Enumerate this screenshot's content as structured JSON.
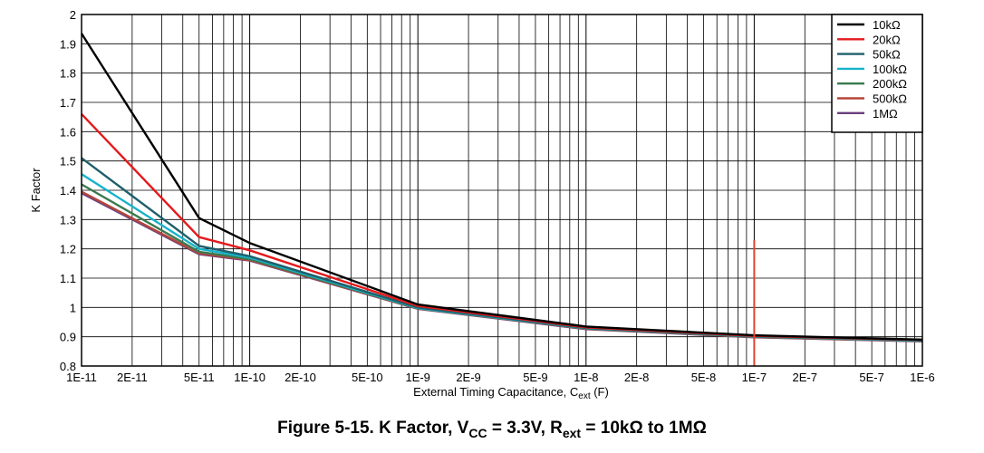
{
  "chart_data": {
    "type": "line",
    "title": "",
    "xlabel": "External Timing Capacitance, C",
    "xlabel_sub": "ext",
    "xlabel_unit": " (F)",
    "ylabel": "K Factor",
    "x_scale": "log",
    "xlim": [
      1e-11,
      1e-06
    ],
    "ylim": [
      0.8,
      2
    ],
    "x_ticks": [
      1e-11,
      2e-11,
      5e-11,
      1e-10,
      2e-10,
      5e-10,
      1e-09,
      2e-09,
      5e-09,
      1e-08,
      2e-08,
      5e-08,
      1e-07,
      2e-07,
      5e-07,
      1e-06
    ],
    "x_tick_labels": [
      "1E-11",
      "2E-11",
      "5E-11",
      "1E-10",
      "2E-10",
      "5E-10",
      "1E-9",
      "2E-9",
      "5E-9",
      "1E-8",
      "2E-8",
      "5E-8",
      "1E-7",
      "2E-7",
      "5E-7",
      "1E-6"
    ],
    "y_ticks": [
      0.8,
      0.9,
      1,
      1.1,
      1.2,
      1.3,
      1.4,
      1.5,
      1.6,
      1.7,
      1.8,
      1.9,
      2
    ],
    "y_tick_labels": [
      "0.8",
      "0.9",
      "1",
      "1.1",
      "1.2",
      "1.3",
      "1.4",
      "1.5",
      "1.6",
      "1.7",
      "1.8",
      "1.9",
      "2"
    ],
    "grid": true,
    "legend_position": "top-right",
    "x": [
      1e-11,
      5e-11,
      1e-10,
      1e-09,
      1e-08,
      1e-07,
      1e-06
    ],
    "series": [
      {
        "name": "10kΩ",
        "color": "#000000",
        "values": [
          1.935,
          1.305,
          1.22,
          1.01,
          0.935,
          0.905,
          0.89
        ]
      },
      {
        "name": "20kΩ",
        "color": "#e31a1c",
        "values": [
          1.66,
          1.24,
          1.195,
          1.005,
          0.932,
          0.903,
          0.889
        ]
      },
      {
        "name": "50kΩ",
        "color": "#1f5f6b",
        "values": [
          1.51,
          1.21,
          1.175,
          1.0,
          0.93,
          0.902,
          0.888
        ]
      },
      {
        "name": "100kΩ",
        "color": "#17b3c9",
        "values": [
          1.455,
          1.2,
          1.17,
          0.998,
          0.929,
          0.901,
          0.887
        ]
      },
      {
        "name": "200kΩ",
        "color": "#3a7a4f",
        "values": [
          1.42,
          1.19,
          1.165,
          0.997,
          0.928,
          0.9,
          0.886
        ]
      },
      {
        "name": "500kΩ",
        "color": "#b5463c",
        "values": [
          1.395,
          1.185,
          1.162,
          0.996,
          0.927,
          0.899,
          0.885
        ]
      },
      {
        "name": "1MΩ",
        "color": "#6b3f7e",
        "values": [
          1.39,
          1.182,
          1.16,
          0.995,
          0.926,
          0.898,
          0.884
        ]
      }
    ],
    "annotations": [
      {
        "type": "vertical-marker",
        "x": 1e-07,
        "y_range": [
          0.8,
          1.23
        ],
        "color": "#e0452f"
      }
    ]
  },
  "caption": {
    "prefix": "Figure 5-15. K Factor, V",
    "vcc_sub": "CC",
    "middle": " = 3.3V, R",
    "rext_sub": "ext",
    "suffix": " = 10kΩ to 1MΩ"
  }
}
